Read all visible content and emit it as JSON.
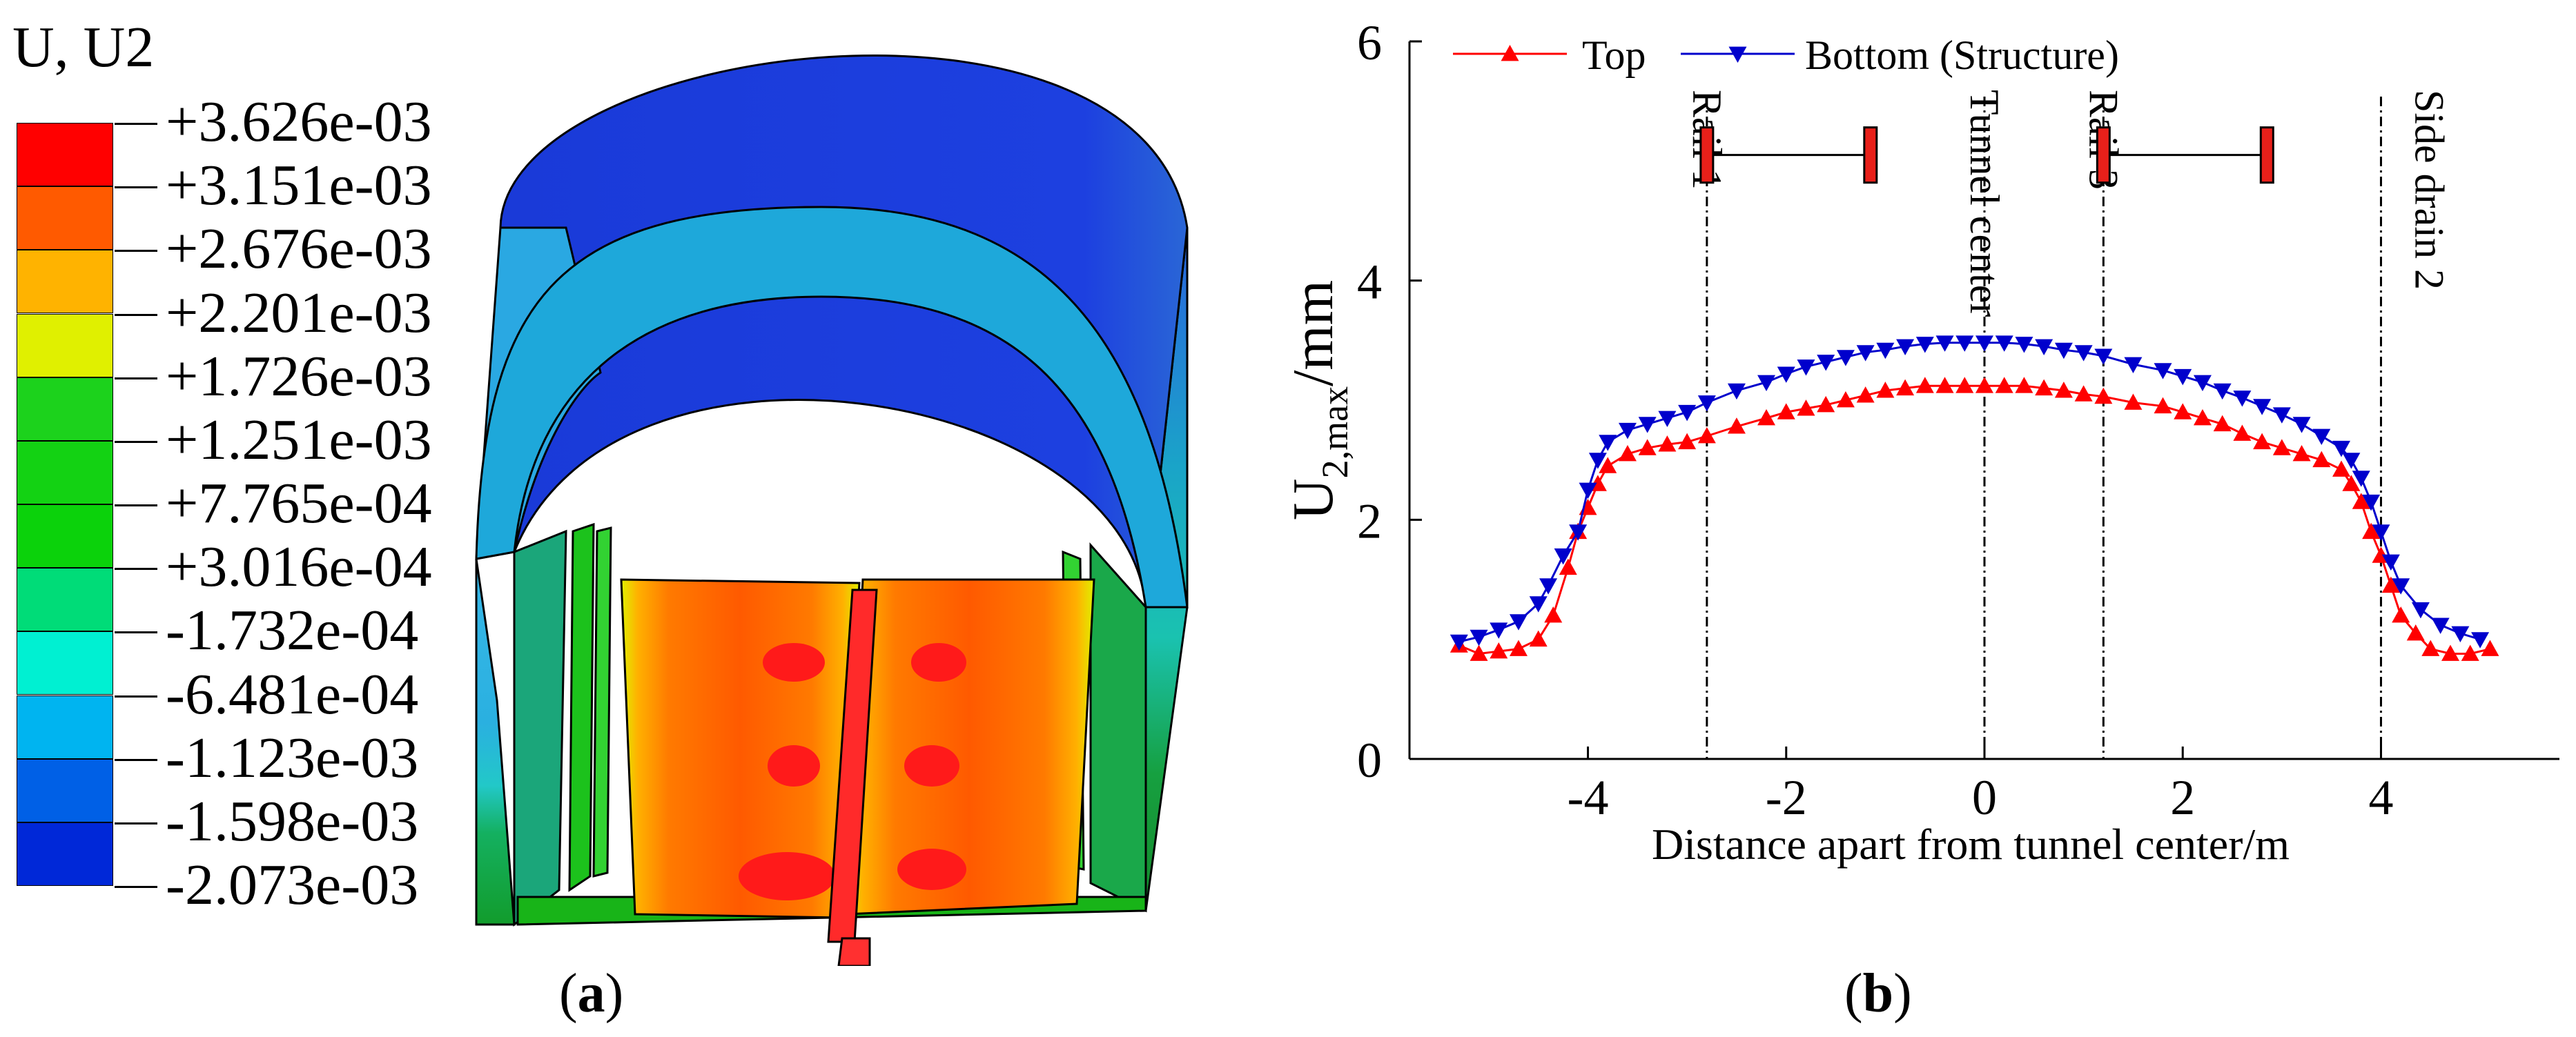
{
  "figure": {
    "panel_a_label": {
      "open": "(",
      "letter": "a",
      "close": ")"
    },
    "panel_b_label": {
      "open": "(",
      "letter": "b",
      "close": ")"
    }
  },
  "contour_legend": {
    "title": "U, U2",
    "levels": [
      "+3.626e-03",
      "+3.151e-03",
      "+2.676e-03",
      "+2.201e-03",
      "+1.726e-03",
      "+1.251e-03",
      "+7.765e-04",
      "+3.016e-04",
      "-1.732e-04",
      "-6.481e-04",
      "-1.123e-03",
      "-1.598e-03",
      "-2.073e-03"
    ],
    "colors": [
      "#ff0000",
      "#ff5a00",
      "#ffb300",
      "#e0f000",
      "#1cd21c",
      "#13d213",
      "#0bd20b",
      "#00dc78",
      "#00f0d2",
      "#00b4f0",
      "#0060e6",
      "#0028d8"
    ]
  },
  "model_colors": {
    "lining": "#1a3ad8",
    "lining_edge": "#4a90e0",
    "side": "#1aa4c8",
    "wall": "#1aa046",
    "slab_orange": "#ff6a00",
    "slab_yellow": "#ffb000",
    "hot": "#ff1a1a",
    "base": "#18b418"
  },
  "chart_data": {
    "type": "line",
    "title": "",
    "xlabel": "Distance apart from tunnel center/m",
    "ylabel": {
      "main": "U",
      "sub": "2,max",
      "unit": "/mm"
    },
    "xlim": [
      -5.8,
      5.8
    ],
    "ylim": [
      0,
      6
    ],
    "xticks": [
      -4,
      -2,
      0,
      2,
      4
    ],
    "yticks": [
      0,
      2,
      4,
      6
    ],
    "series": [
      {
        "name": "Top",
        "color": "#ff0000",
        "marker": "triangle-up",
        "x": [
          -5.3,
          -5.1,
          -4.9,
          -4.7,
          -4.5,
          -4.35,
          -4.2,
          -4.1,
          -4.0,
          -3.9,
          -3.8,
          -3.6,
          -3.4,
          -3.2,
          -3.0,
          -2.8,
          -2.5,
          -2.2,
          -2.0,
          -1.8,
          -1.6,
          -1.4,
          -1.2,
          -1.0,
          -0.8,
          -0.6,
          -0.4,
          -0.2,
          0.0,
          0.2,
          0.4,
          0.6,
          0.8,
          1.0,
          1.2,
          1.5,
          1.8,
          2.0,
          2.2,
          2.4,
          2.6,
          2.8,
          3.0,
          3.2,
          3.4,
          3.6,
          3.7,
          3.8,
          3.9,
          4.0,
          4.1,
          4.2,
          4.35,
          4.5,
          4.7,
          4.9,
          5.1
        ],
        "y": [
          0.95,
          0.88,
          0.9,
          0.92,
          1.0,
          1.2,
          1.6,
          1.9,
          2.1,
          2.3,
          2.45,
          2.55,
          2.6,
          2.63,
          2.65,
          2.7,
          2.78,
          2.85,
          2.9,
          2.93,
          2.96,
          3.0,
          3.04,
          3.08,
          3.1,
          3.12,
          3.12,
          3.12,
          3.12,
          3.12,
          3.12,
          3.1,
          3.08,
          3.05,
          3.03,
          2.98,
          2.95,
          2.9,
          2.85,
          2.8,
          2.72,
          2.65,
          2.6,
          2.55,
          2.5,
          2.42,
          2.3,
          2.15,
          1.9,
          1.7,
          1.45,
          1.2,
          1.05,
          0.92,
          0.88,
          0.88,
          0.92
        ]
      },
      {
        "name": "Bottom (Structure)",
        "color": "#0000cc",
        "marker": "triangle-down",
        "x": [
          -5.3,
          -5.1,
          -4.9,
          -4.7,
          -4.5,
          -4.4,
          -4.25,
          -4.1,
          -4.0,
          -3.9,
          -3.8,
          -3.6,
          -3.4,
          -3.2,
          -3.0,
          -2.8,
          -2.5,
          -2.2,
          -2.0,
          -1.8,
          -1.6,
          -1.4,
          -1.2,
          -1.0,
          -0.8,
          -0.6,
          -0.4,
          -0.2,
          0.0,
          0.2,
          0.4,
          0.6,
          0.8,
          1.0,
          1.2,
          1.5,
          1.8,
          2.0,
          2.2,
          2.4,
          2.6,
          2.8,
          3.0,
          3.2,
          3.4,
          3.6,
          3.7,
          3.8,
          3.9,
          4.0,
          4.1,
          4.2,
          4.4,
          4.6,
          4.8,
          5.0
        ],
        "y": [
          0.98,
          1.02,
          1.08,
          1.15,
          1.3,
          1.45,
          1.7,
          1.9,
          2.25,
          2.5,
          2.65,
          2.75,
          2.8,
          2.85,
          2.9,
          2.98,
          3.08,
          3.15,
          3.22,
          3.28,
          3.32,
          3.36,
          3.4,
          3.42,
          3.45,
          3.47,
          3.48,
          3.48,
          3.48,
          3.48,
          3.47,
          3.45,
          3.42,
          3.4,
          3.37,
          3.3,
          3.25,
          3.2,
          3.15,
          3.08,
          3.02,
          2.95,
          2.88,
          2.8,
          2.7,
          2.6,
          2.5,
          2.35,
          2.15,
          1.9,
          1.65,
          1.45,
          1.25,
          1.12,
          1.05,
          1.0
        ]
      }
    ],
    "reference_lines": [
      {
        "x": -2.8,
        "label": "Rail 1",
        "label_side": "left"
      },
      {
        "x": 0.0,
        "label": "Tunnel center",
        "label_side": "left"
      },
      {
        "x": 1.2,
        "label": "Rail 3",
        "label_side": "left"
      },
      {
        "x": 4.0,
        "label": "Side drain 2",
        "label_side": "right"
      }
    ],
    "rail_markers": [
      {
        "x1": -2.8,
        "x2": -1.15,
        "y": 5.05
      },
      {
        "x1": 1.2,
        "x2": 2.85,
        "y": 5.05
      }
    ],
    "legend_position": "top"
  }
}
